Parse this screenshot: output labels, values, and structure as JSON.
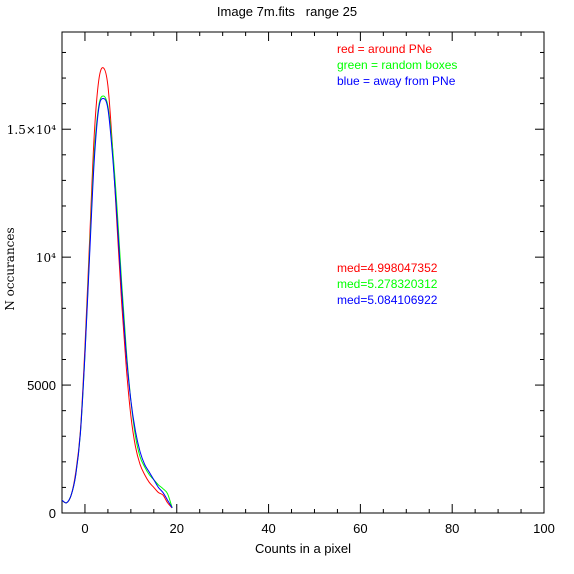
{
  "chart_data": {
    "type": "line",
    "title": "Image 7m.fits   range 25",
    "xlabel": "Counts in a pixel",
    "ylabel": "N occurances",
    "xlim": [
      -5,
      100
    ],
    "ylim": [
      0,
      18800
    ],
    "xticks": [
      {
        "value": 0,
        "label": "0"
      },
      {
        "value": 20,
        "label": "20"
      },
      {
        "value": 40,
        "label": "40"
      },
      {
        "value": 60,
        "label": "60"
      },
      {
        "value": 80,
        "label": "80"
      },
      {
        "value": 100,
        "label": "100"
      }
    ],
    "yticks": [
      {
        "value": 0,
        "label": "0"
      },
      {
        "value": 5000,
        "label": "5000"
      },
      {
        "value": 10000,
        "label": "10⁴"
      },
      {
        "value": 15000,
        "label": "1.5×10⁴"
      }
    ],
    "series": [
      {
        "name": "red = around PNe",
        "color": "#ff0000",
        "x": [
          -5,
          -4,
          -3,
          -2,
          -1,
          0,
          1,
          2,
          3,
          4,
          5,
          6,
          7,
          8,
          9,
          10,
          11,
          12,
          13,
          14,
          15,
          16,
          17,
          18,
          19
        ],
        "y": [
          500,
          400,
          700,
          1600,
          3200,
          6500,
          10600,
          14700,
          16900,
          17400,
          16700,
          14300,
          11200,
          8200,
          5700,
          3800,
          2600,
          1900,
          1500,
          1200,
          1000,
          800,
          700,
          400,
          200
        ]
      },
      {
        "name": "green = random boxes",
        "color": "#00ff00",
        "x": [
          -5,
          -4,
          -3,
          -2,
          -1,
          0,
          1,
          2,
          3,
          4,
          5,
          6,
          7,
          8,
          9,
          10,
          11,
          12,
          13,
          14,
          15,
          16,
          17,
          18,
          19
        ],
        "y": [
          500,
          400,
          700,
          1500,
          3100,
          6200,
          10200,
          14000,
          15900,
          16300,
          15900,
          14300,
          11900,
          9000,
          6400,
          4400,
          3000,
          2200,
          1800,
          1500,
          1300,
          1100,
          950,
          750,
          200
        ]
      },
      {
        "name": "blue = away from PNe",
        "color": "#0000ff",
        "x": [
          -5,
          -4,
          -3,
          -2,
          -1,
          0,
          1,
          2,
          3,
          4,
          5,
          6,
          7,
          8,
          9,
          10,
          11,
          12,
          13,
          14,
          15,
          16,
          17,
          18,
          19
        ],
        "y": [
          500,
          400,
          700,
          1500,
          3100,
          6200,
          10000,
          13700,
          15800,
          16200,
          15800,
          14000,
          11500,
          8700,
          6200,
          4400,
          3200,
          2400,
          1900,
          1600,
          1300,
          1000,
          800,
          500,
          200
        ]
      }
    ],
    "annotations": [
      {
        "text": "med=4.998047352",
        "color": "#ff0000"
      },
      {
        "text": "med=5.278320312",
        "color": "#00ff00"
      },
      {
        "text": "med=5.084106922",
        "color": "#0000ff"
      }
    ],
    "grid": false,
    "legend_position": "top-right"
  }
}
